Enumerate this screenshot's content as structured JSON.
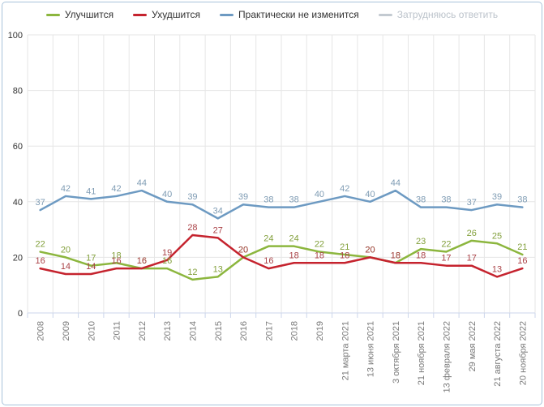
{
  "chart_data": {
    "type": "line",
    "title": "",
    "xlabel": "",
    "ylabel": "",
    "ylim": [
      0,
      100
    ],
    "yticks": [
      0,
      20,
      40,
      60,
      80,
      100
    ],
    "grid": true,
    "legend_position": "top",
    "categories": [
      "2008",
      "2009",
      "2010",
      "2011",
      "2012",
      "2013",
      "2014",
      "2015",
      "2016",
      "2017",
      "2018",
      "2019",
      "21 марта 2021",
      "13 июня 2021",
      "3 октября 2021",
      "21 ноября 2021",
      "13 февраля 2022",
      "29 мая 2022",
      "21 августа 2022",
      "20 ноября 2022"
    ],
    "series": [
      {
        "name": "Улучшится",
        "color": "#8cb63e",
        "label_color": "#83a03c",
        "enabled": true,
        "values": [
          22,
          20,
          17,
          18,
          16,
          16,
          12,
          13,
          20,
          24,
          24,
          22,
          21,
          20,
          18,
          23,
          22,
          26,
          25,
          21
        ]
      },
      {
        "name": "Ухудшится",
        "color": "#c5232e",
        "label_color": "#aa4247",
        "enabled": true,
        "values": [
          16,
          14,
          14,
          16,
          16,
          19,
          28,
          27,
          20,
          16,
          18,
          18,
          18,
          20,
          18,
          18,
          17,
          17,
          13,
          16
        ]
      },
      {
        "name": "Практически не изменится",
        "color": "#6d9ac2",
        "label_color": "#7f9cb4",
        "enabled": true,
        "values": [
          37,
          42,
          41,
          42,
          44,
          40,
          39,
          34,
          39,
          38,
          38,
          40,
          42,
          40,
          44,
          38,
          38,
          37,
          39,
          38
        ]
      },
      {
        "name": "Затрудняюсь ответить",
        "color": "#c3cad1",
        "label_color": "#c3cad1",
        "enabled": false,
        "values": []
      }
    ],
    "axis_colors": {
      "grid_line": "#e6e6e6",
      "axis_line": "#ccd6eb",
      "y_label": "#333333",
      "x_label": "#7a7a7a"
    }
  }
}
